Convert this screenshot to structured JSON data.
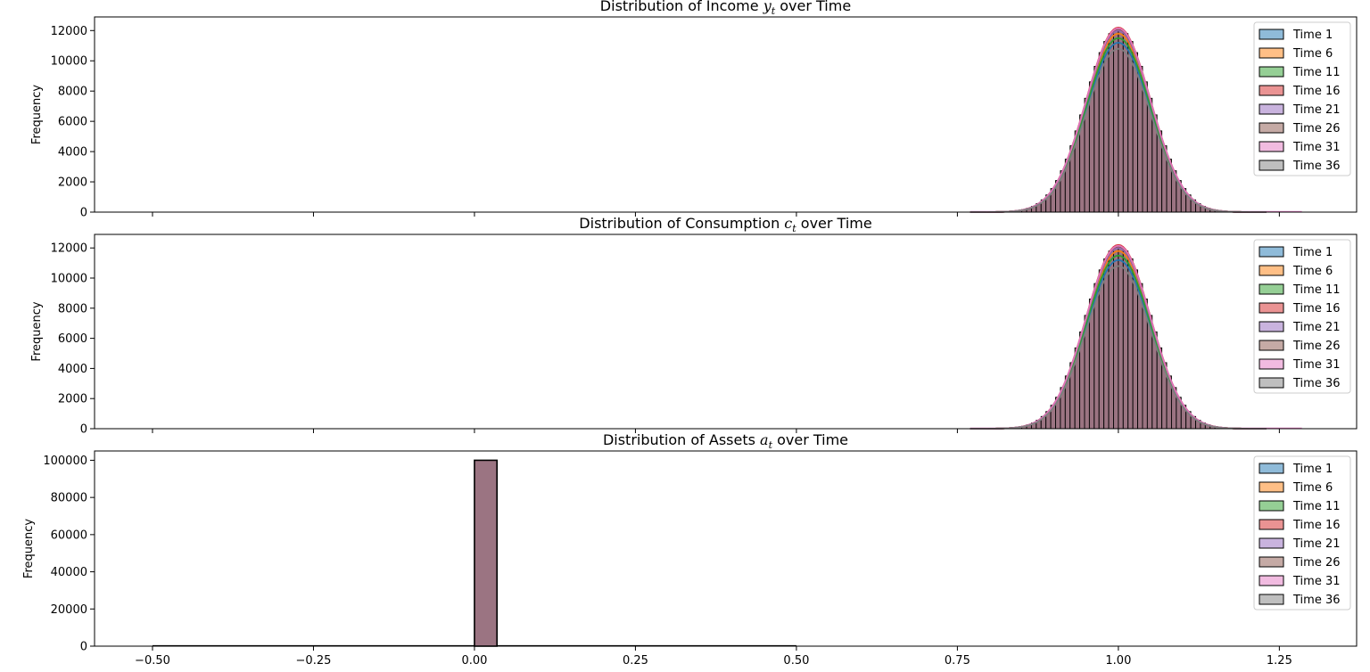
{
  "chart_data": [
    {
      "type": "histogram",
      "title": "Distribution of Income $y_t$ over Time",
      "title_parts": {
        "before": "Distribution of Income ",
        "var": "y",
        "sub": "t",
        "after": " over Time"
      },
      "xlabel": "",
      "ylabel": "Frequency",
      "xlim": [
        -0.59,
        1.37
      ],
      "ylim": [
        0,
        12900
      ],
      "yticks": [
        0,
        2000,
        4000,
        6000,
        8000,
        10000,
        12000
      ],
      "xticks_visible": false,
      "distribution": {
        "mean": 1.0,
        "sd": 0.05,
        "support": [
          0.77,
          1.285
        ],
        "bin_width": 0.0075,
        "peak": 12100,
        "kde": true
      },
      "series": [
        {
          "name": "Time 1",
          "peak": 11200
        },
        {
          "name": "Time 6",
          "peak": 11800
        },
        {
          "name": "Time 11",
          "peak": 11500
        },
        {
          "name": "Time 16",
          "peak": 12200
        },
        {
          "name": "Time 21",
          "peak": 12000
        },
        {
          "name": "Time 26",
          "peak": 12100
        },
        {
          "name": "Time 31",
          "peak": 12150
        },
        {
          "name": "Time 36",
          "peak": 10800
        }
      ],
      "legend": "upper-right"
    },
    {
      "type": "histogram",
      "title": "Distribution of Consumption $c_t$ over Time",
      "title_parts": {
        "before": "Distribution of Consumption ",
        "var": "c",
        "sub": "t",
        "after": " over Time"
      },
      "xlabel": "",
      "ylabel": "Frequency",
      "xlim": [
        -0.59,
        1.37
      ],
      "ylim": [
        0,
        12900
      ],
      "yticks": [
        0,
        2000,
        4000,
        6000,
        8000,
        10000,
        12000
      ],
      "xticks_visible": false,
      "distribution": {
        "mean": 1.0,
        "sd": 0.05,
        "support": [
          0.77,
          1.285
        ],
        "bin_width": 0.0075,
        "peak": 12100,
        "kde": true
      },
      "series": [
        {
          "name": "Time 1",
          "peak": 11200
        },
        {
          "name": "Time 6",
          "peak": 11800
        },
        {
          "name": "Time 11",
          "peak": 11500
        },
        {
          "name": "Time 16",
          "peak": 12200
        },
        {
          "name": "Time 21",
          "peak": 12000
        },
        {
          "name": "Time 26",
          "peak": 12100
        },
        {
          "name": "Time 31",
          "peak": 12150
        },
        {
          "name": "Time 36",
          "peak": 10800
        }
      ],
      "legend": "upper-right"
    },
    {
      "type": "histogram",
      "title": "Distribution of Assets $a_t$ over Time",
      "title_parts": {
        "before": "Distribution of Assets ",
        "var": "a",
        "sub": "t",
        "after": " over Time"
      },
      "xlabel": "",
      "ylabel": "Frequency",
      "xlim": [
        -0.59,
        1.37
      ],
      "ylim": [
        0,
        105000
      ],
      "yticks": [
        0,
        20000,
        40000,
        60000,
        80000,
        100000
      ],
      "xticks": [
        -0.5,
        -0.25,
        0.0,
        0.25,
        0.5,
        0.75,
        1.0,
        1.25
      ],
      "xtick_labels": [
        "−0.50",
        "−0.25",
        "0.00",
        "0.25",
        "0.50",
        "0.75",
        "1.00",
        "1.25"
      ],
      "bars": [
        {
          "x0": 0.0,
          "x1": 0.035,
          "value": 100000
        }
      ],
      "baseline_range": [
        -0.5,
        0.5
      ],
      "series": [
        {
          "name": "Time 1"
        },
        {
          "name": "Time 6"
        },
        {
          "name": "Time 11"
        },
        {
          "name": "Time 16"
        },
        {
          "name": "Time 21"
        },
        {
          "name": "Time 26"
        },
        {
          "name": "Time 31"
        },
        {
          "name": "Time 36"
        }
      ],
      "legend": "upper-right"
    }
  ],
  "colors": {
    "series": [
      "#1f77b4",
      "#ff7f0e",
      "#2ca02c",
      "#d62728",
      "#9467bd",
      "#8c564b",
      "#e377c2",
      "#7f7f7f"
    ],
    "overlap_fill": "#9b7482",
    "bar_edge": "#000000"
  }
}
